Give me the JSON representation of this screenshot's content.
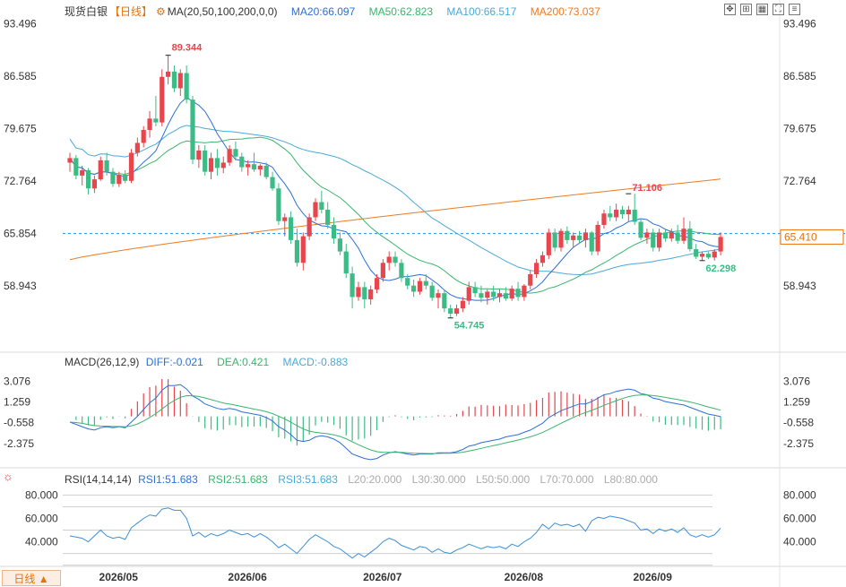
{
  "instrument": {
    "name": "现货白银",
    "period_label": "【日线】",
    "gear_icon": "gear-icon"
  },
  "main_legend": {
    "ma_label": "MA(20,50,100,200,0,0)",
    "ma20": "MA20:66.097",
    "ma50": "MA50:62.823",
    "ma100": "MA100:66.517",
    "ma200": "MA200:73.037"
  },
  "macd_legend": {
    "label": "MACD(26,12,9)",
    "diff": "DIFF:-0.021",
    "dea": "DEA:0.421",
    "macd": "MACD:-0.883"
  },
  "rsi_legend": {
    "label": "RSI(14,14,14)",
    "rsi1": "RSI1:51.683",
    "rsi2": "RSI2:51.683",
    "rsi3": "RSI3:51.683",
    "l20": "L20:20.000",
    "l30": "L30:30.000",
    "l50": "L50:50.000",
    "l70": "L70:70.000",
    "l80": "L80:80.000"
  },
  "toolbar": [
    "expand-icon",
    "fit-icon",
    "grid-icon",
    "fullscreen-icon",
    "more-icon"
  ],
  "period_tab": "日线 ▲",
  "colors": {
    "up": "#e8454d",
    "down": "#3dbb86",
    "ma20": "#2d6fd6",
    "ma50": "#3ab56c",
    "ma100": "#4aa9d8",
    "ma200": "#f07a22",
    "price_line": "#2f8fd8",
    "rsi": "#3b8fd9"
  },
  "chart_data": [
    {
      "type": "candlestick",
      "title": "现货白银",
      "ylim": [
        52.0,
        94.5
      ],
      "y_ticks": [
        "93.496",
        "86.585",
        "79.675",
        "72.764",
        "65.854",
        "58.943"
      ],
      "x_labels": [
        "2026/05",
        "2026/06",
        "2026/07",
        "2026/08",
        "2026/09"
      ],
      "current_price": "65.410",
      "price_line_label": "65.854",
      "annotations": {
        "high": "89.344",
        "low": "54.745",
        "swing_high": "71.106",
        "recent_low": "62.298"
      },
      "ohlc": [
        [
          75.2,
          76.5,
          74.0,
          75.8
        ],
        [
          75.8,
          76.2,
          73.0,
          73.5
        ],
        [
          73.5,
          74.8,
          72.2,
          74.2
        ],
        [
          74.2,
          74.5,
          71.0,
          71.8
        ],
        [
          71.8,
          73.5,
          71.2,
          73.0
        ],
        [
          73.0,
          76.0,
          72.8,
          75.5
        ],
        [
          75.5,
          76.5,
          73.5,
          74.0
        ],
        [
          74.0,
          74.5,
          72.0,
          72.4
        ],
        [
          72.4,
          74.0,
          72.0,
          73.6
        ],
        [
          73.6,
          74.2,
          72.5,
          72.8
        ],
        [
          72.8,
          77.0,
          72.5,
          76.5
        ],
        [
          76.5,
          78.5,
          76.0,
          77.8
        ],
        [
          77.8,
          80.0,
          77.2,
          79.5
        ],
        [
          79.5,
          82.0,
          78.5,
          81.0
        ],
        [
          81.0,
          84.0,
          80.0,
          80.5
        ],
        [
          80.5,
          87.5,
          80.0,
          86.5
        ],
        [
          86.5,
          89.3,
          85.5,
          87.2
        ],
        [
          87.2,
          88.0,
          84.5,
          85.0
        ],
        [
          85.0,
          87.5,
          84.0,
          87.0
        ],
        [
          87.0,
          88.0,
          83.0,
          83.5
        ],
        [
          83.5,
          84.0,
          75.0,
          75.6
        ],
        [
          75.6,
          77.5,
          74.5,
          76.8
        ],
        [
          76.8,
          77.5,
          73.5,
          74.0
        ],
        [
          74.0,
          76.5,
          73.0,
          75.8
        ],
        [
          75.8,
          77.0,
          73.5,
          74.5
        ],
        [
          74.5,
          76.0,
          73.8,
          75.2
        ],
        [
          75.2,
          77.5,
          74.8,
          77.0
        ],
        [
          77.0,
          78.0,
          75.5,
          76.0
        ],
        [
          76.0,
          76.5,
          74.0,
          74.6
        ],
        [
          74.6,
          75.5,
          73.5,
          75.0
        ],
        [
          75.0,
          76.5,
          74.0,
          74.3
        ],
        [
          74.3,
          75.0,
          73.5,
          74.8
        ],
        [
          74.8,
          75.2,
          73.0,
          73.3
        ],
        [
          73.3,
          74.0,
          71.5,
          71.8
        ],
        [
          71.8,
          72.5,
          67.0,
          67.5
        ],
        [
          67.5,
          68.5,
          65.5,
          68.0
        ],
        [
          68.0,
          68.8,
          64.5,
          65.0
        ],
        [
          65.0,
          66.5,
          61.5,
          62.0
        ],
        [
          62.0,
          66.0,
          61.0,
          65.5
        ],
        [
          65.5,
          68.5,
          65.0,
          68.0
        ],
        [
          68.0,
          70.5,
          67.5,
          70.0
        ],
        [
          70.0,
          71.5,
          68.5,
          69.0
        ],
        [
          69.0,
          70.0,
          66.5,
          67.0
        ],
        [
          67.0,
          68.0,
          64.5,
          65.2
        ],
        [
          65.2,
          66.0,
          63.0,
          63.5
        ],
        [
          63.5,
          64.5,
          60.0,
          60.6
        ],
        [
          60.6,
          61.5,
          56.0,
          57.5
        ],
        [
          57.5,
          59.5,
          57.0,
          58.8
        ],
        [
          58.8,
          59.5,
          56.0,
          57.2
        ],
        [
          57.2,
          59.0,
          56.5,
          58.5
        ],
        [
          58.5,
          60.5,
          58.0,
          60.0
        ],
        [
          60.0,
          62.5,
          59.5,
          62.0
        ],
        [
          62.0,
          63.5,
          61.0,
          62.8
        ],
        [
          62.8,
          63.5,
          61.5,
          62.0
        ],
        [
          62.0,
          62.5,
          59.5,
          60.0
        ],
        [
          60.0,
          60.5,
          58.5,
          59.0
        ],
        [
          59.0,
          59.8,
          57.5,
          58.2
        ],
        [
          58.2,
          60.0,
          57.8,
          59.6
        ],
        [
          59.6,
          60.5,
          58.5,
          59.0
        ],
        [
          59.0,
          59.5,
          57.0,
          57.4
        ],
        [
          57.4,
          58.5,
          56.0,
          58.0
        ],
        [
          58.0,
          58.5,
          55.5,
          56.0
        ],
        [
          56.0,
          56.5,
          54.7,
          55.3
        ],
        [
          55.3,
          56.5,
          55.0,
          56.0
        ],
        [
          56.0,
          57.5,
          55.5,
          57.0
        ],
        [
          57.0,
          59.5,
          56.5,
          58.8
        ],
        [
          58.8,
          59.5,
          57.5,
          58.0
        ],
        [
          58.0,
          59.0,
          56.8,
          57.4
        ],
        [
          57.4,
          58.5,
          56.5,
          58.2
        ],
        [
          58.2,
          59.0,
          57.0,
          57.5
        ],
        [
          57.5,
          58.5,
          56.8,
          58.0
        ],
        [
          58.0,
          58.8,
          57.0,
          57.3
        ],
        [
          57.3,
          59.0,
          57.0,
          58.6
        ],
        [
          58.6,
          59.5,
          57.0,
          57.5
        ],
        [
          57.5,
          59.2,
          57.0,
          59.0
        ],
        [
          59.0,
          61.0,
          58.5,
          60.5
        ],
        [
          60.5,
          62.5,
          60.0,
          62.0
        ],
        [
          62.0,
          63.5,
          61.5,
          63.0
        ],
        [
          63.0,
          66.5,
          62.5,
          66.0
        ],
        [
          66.0,
          66.5,
          63.5,
          64.0
        ],
        [
          64.0,
          66.5,
          63.5,
          66.2
        ],
        [
          66.2,
          66.8,
          64.5,
          65.0
        ],
        [
          65.0,
          66.0,
          64.0,
          65.6
        ],
        [
          65.6,
          66.2,
          64.5,
          65.0
        ],
        [
          65.0,
          66.5,
          64.0,
          66.0
        ],
        [
          66.0,
          66.2,
          63.0,
          63.5
        ],
        [
          63.5,
          67.5,
          63.0,
          67.0
        ],
        [
          67.0,
          69.0,
          66.5,
          68.5
        ],
        [
          68.5,
          69.5,
          67.5,
          68.0
        ],
        [
          68.0,
          69.8,
          67.5,
          69.0
        ],
        [
          69.0,
          69.5,
          67.8,
          68.4
        ],
        [
          68.4,
          69.5,
          67.5,
          69.0
        ],
        [
          69.0,
          71.1,
          67.0,
          67.4
        ],
        [
          67.4,
          67.8,
          65.0,
          65.3
        ],
        [
          65.3,
          66.5,
          64.5,
          66.0
        ],
        [
          66.0,
          66.5,
          63.5,
          64.0
        ],
        [
          64.0,
          66.5,
          63.5,
          66.0
        ],
        [
          66.0,
          66.5,
          64.8,
          65.2
        ],
        [
          65.2,
          66.5,
          64.8,
          66.0
        ],
        [
          66.0,
          67.0,
          64.5,
          64.9
        ],
        [
          64.9,
          68.0,
          64.5,
          66.5
        ],
        [
          66.5,
          67.5,
          63.5,
          63.8
        ],
        [
          63.8,
          64.5,
          62.5,
          62.8
        ],
        [
          62.8,
          63.5,
          62.3,
          63.2
        ],
        [
          63.2,
          63.5,
          62.5,
          62.7
        ],
        [
          62.7,
          63.8,
          62.3,
          63.5
        ],
        [
          63.5,
          66.0,
          63.0,
          65.41
        ]
      ]
    },
    {
      "type": "bar",
      "title": "MACD(26,12,9)",
      "ylim": [
        -4.2,
        4.3
      ],
      "y_ticks": [
        "3.076",
        "1.259",
        "-0.558",
        "-2.375"
      ],
      "diff": [
        -0.5,
        -0.7,
        -0.9,
        -1.1,
        -1.2,
        -1.0,
        -0.9,
        -1.0,
        -0.9,
        -1.0,
        -0.5,
        0.0,
        0.6,
        1.2,
        1.6,
        2.3,
        2.7,
        2.7,
        2.8,
        2.4,
        1.8,
        1.5,
        1.1,
        0.9,
        0.7,
        0.6,
        0.7,
        0.6,
        0.4,
        0.3,
        0.2,
        0.1,
        -0.1,
        -0.4,
        -0.9,
        -1.2,
        -1.6,
        -2.1,
        -2.2,
        -2.1,
        -1.8,
        -1.7,
        -1.8,
        -2.0,
        -2.3,
        -2.8,
        -3.3,
        -3.5,
        -3.7,
        -3.8,
        -3.7,
        -3.4,
        -3.2,
        -3.1,
        -3.2,
        -3.3,
        -3.4,
        -3.3,
        -3.3,
        -3.3,
        -3.2,
        -3.2,
        -3.2,
        -3.1,
        -2.9,
        -2.6,
        -2.5,
        -2.3,
        -2.2,
        -2.1,
        -2.0,
        -1.8,
        -1.7,
        -1.6,
        -1.4,
        -1.2,
        -0.9,
        -0.6,
        -0.1,
        0.2,
        0.5,
        0.7,
        0.9,
        1.1,
        1.1,
        1.3,
        1.6,
        1.9,
        2.0,
        2.2,
        2.3,
        2.4,
        2.3,
        2.0,
        1.9,
        1.6,
        1.5,
        1.3,
        1.2,
        1.1,
        1.0,
        0.8,
        0.6,
        0.4,
        0.2,
        0.1,
        -0.021
      ]
    },
    {
      "type": "line",
      "title": "RSI(14,14,14)",
      "ylim": [
        22,
        88
      ],
      "y_ticks": [
        "80.000",
        "60.000",
        "40.000"
      ],
      "levels": [
        20,
        30,
        50,
        70,
        80
      ],
      "rsi": [
        45,
        44,
        43,
        40,
        45,
        50,
        45,
        43,
        44,
        42,
        52,
        56,
        60,
        63,
        62,
        68,
        69,
        67,
        67,
        60,
        45,
        48,
        44,
        47,
        45,
        47,
        50,
        48,
        46,
        47,
        44,
        47,
        44,
        40,
        35,
        38,
        34,
        30,
        36,
        42,
        46,
        43,
        40,
        36,
        34,
        30,
        26,
        30,
        27,
        31,
        35,
        40,
        43,
        41,
        37,
        35,
        33,
        36,
        35,
        31,
        34,
        31,
        30,
        33,
        35,
        38,
        36,
        34,
        36,
        35,
        36,
        34,
        38,
        36,
        40,
        43,
        48,
        55,
        51,
        56,
        54,
        55,
        53,
        55,
        49,
        58,
        61,
        60,
        62,
        61,
        60,
        58,
        56,
        50,
        51,
        47,
        51,
        49,
        51,
        48,
        52,
        46,
        44,
        46,
        44,
        46,
        51.683
      ]
    }
  ]
}
